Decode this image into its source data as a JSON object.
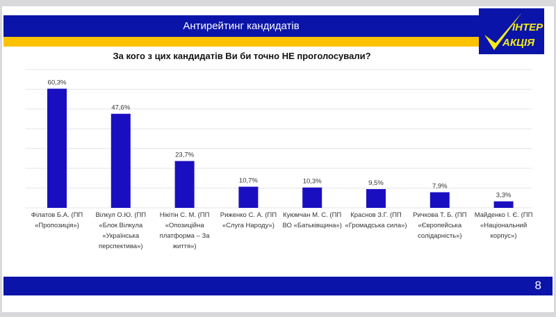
{
  "header": {
    "title": "Антирейтинг кандидатів",
    "logo_text": "ІНТЕР АКЦІЯ"
  },
  "footer": {
    "page_number": "8"
  },
  "colors": {
    "bar": "#1a0fc0",
    "header_blue": "#0a14a8",
    "yellow": "#fcc200"
  },
  "chart_data": {
    "type": "bar",
    "title": "За кого з цих кандидатів Ви би точно НЕ проголосували?",
    "categories": [
      "Філатов Б.А. (ПП «Пропозиція»)",
      "Вілкул О.Ю. (ПП «Блок Вілкула «Українська перспектива»)",
      "Нікітін С. М. (ПП «Опозиційна платформа – За життя»)",
      "Риженко С. А. (ПП «Слуга Народу»)",
      "Куюмчан М. С. (ПП ВО «Батьківщина»)",
      "Краснов З.Г. (ПП «Громадська сила»)",
      "Ричкова Т. Б. (ПП «Європейська солідарність»)",
      "Майденко І. Є. (ПП «Національний корпус»)"
    ],
    "values": [
      60.3,
      47.6,
      23.7,
      10.7,
      10.3,
      9.5,
      7.9,
      3.3
    ],
    "labels": [
      "60,3%",
      "47,6%",
      "23,7%",
      "10,7%",
      "10,3%",
      "9,5%",
      "7,9%",
      "3,3%"
    ],
    "ylim": [
      0,
      70
    ],
    "grid": true,
    "xlabel": "",
    "ylabel": ""
  }
}
